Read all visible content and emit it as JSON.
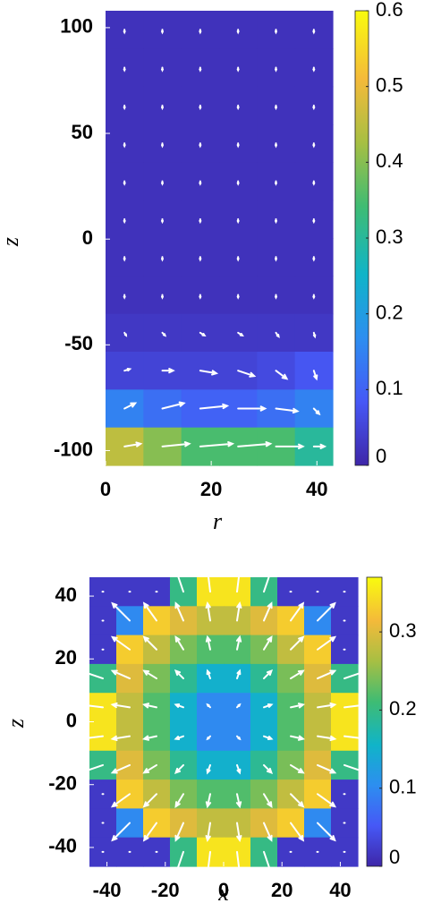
{
  "chart_data": [
    {
      "type": "heatmap",
      "xlabel": "r",
      "ylabel": "z",
      "colormap": "parula",
      "xlim": [
        0,
        43
      ],
      "ylim": [
        -107,
        108
      ],
      "xticks": [
        0,
        20,
        40
      ],
      "yticks": [
        -100,
        -50,
        0,
        50,
        100
      ],
      "clim": [
        0,
        0.6
      ],
      "cticks": [
        0,
        0.1,
        0.2,
        0.3,
        0.4,
        0.5,
        0.6
      ],
      "z": [
        [
          0.02,
          0.02,
          0.02,
          0.02,
          0.02,
          0.02
        ],
        [
          0.02,
          0.02,
          0.02,
          0.02,
          0.02,
          0.02
        ],
        [
          0.02,
          0.02,
          0.02,
          0.02,
          0.02,
          0.02
        ],
        [
          0.02,
          0.02,
          0.02,
          0.02,
          0.02,
          0.02
        ],
        [
          0.02,
          0.02,
          0.02,
          0.02,
          0.02,
          0.02
        ],
        [
          0.02,
          0.02,
          0.02,
          0.02,
          0.02,
          0.02
        ],
        [
          0.02,
          0.02,
          0.02,
          0.02,
          0.02,
          0.02
        ],
        [
          0.02,
          0.02,
          0.02,
          0.02,
          0.02,
          0.02
        ],
        [
          0.03,
          0.03,
          0.03,
          0.03,
          0.03,
          0.03
        ],
        [
          0.05,
          0.05,
          0.05,
          0.05,
          0.06,
          0.08
        ],
        [
          0.15,
          0.12,
          0.1,
          0.1,
          0.12,
          0.15
        ],
        [
          0.45,
          0.4,
          0.35,
          0.35,
          0.35,
          0.3
        ]
      ],
      "u": [
        [
          0,
          0,
          0,
          0,
          0,
          0
        ],
        [
          0,
          0,
          0,
          0,
          0,
          0
        ],
        [
          0,
          0,
          0,
          0,
          0,
          0
        ],
        [
          0,
          0,
          0,
          0,
          0,
          0
        ],
        [
          0,
          0,
          0,
          0,
          0,
          0
        ],
        [
          0,
          0,
          0,
          0,
          0,
          0
        ],
        [
          0,
          0,
          0,
          0,
          0,
          0
        ],
        [
          0,
          0,
          0,
          0,
          0,
          0
        ],
        [
          0.3,
          0.5,
          0.8,
          0.8,
          0.5,
          0.2
        ],
        [
          1,
          2,
          3,
          3,
          2,
          0.5
        ],
        [
          2,
          4,
          5,
          5,
          4,
          1
        ],
        [
          3,
          5,
          6,
          6,
          5,
          2
        ]
      ],
      "v": [
        [
          -0.5,
          -0.5,
          -0.5,
          -0.5,
          -0.5,
          -0.5
        ],
        [
          -0.5,
          -0.5,
          -0.5,
          -0.5,
          -0.5,
          -0.5
        ],
        [
          -0.5,
          -0.5,
          -0.5,
          -0.5,
          -0.5,
          -0.5
        ],
        [
          -0.5,
          -0.5,
          -0.5,
          -0.5,
          -0.5,
          -0.5
        ],
        [
          -0.5,
          -0.5,
          -0.5,
          -0.5,
          -0.5,
          -0.5
        ],
        [
          -0.5,
          -0.5,
          -0.5,
          -0.5,
          -0.5,
          -0.5
        ],
        [
          -0.5,
          -0.5,
          -0.5,
          -0.5,
          -0.5,
          -0.5
        ],
        [
          -0.5,
          -0.5,
          -0.5,
          -0.5,
          -0.5,
          -0.5
        ],
        [
          -0.5,
          -0.5,
          -0.5,
          -0.5,
          -0.7,
          -0.7
        ],
        [
          0.3,
          0,
          -0.5,
          -1,
          -1.5,
          -1.5
        ],
        [
          1,
          1,
          0.5,
          0,
          -0.5,
          -1
        ],
        [
          0.5,
          0.5,
          0.5,
          0.5,
          0,
          0
        ]
      ]
    },
    {
      "type": "heatmap",
      "xlabel": "x",
      "ylabel": "z",
      "colormap": "parula",
      "xlim": [
        -46,
        46
      ],
      "ylim": [
        -46,
        46
      ],
      "xticks": [
        -40,
        -20,
        0,
        20,
        40
      ],
      "yticks": [
        -40,
        -20,
        0,
        20,
        40
      ],
      "clim": [
        0,
        0.37
      ],
      "cticks": [
        0,
        0.1,
        0.2,
        0.3
      ],
      "z": [
        [
          0.02,
          0.02,
          0.02,
          0.2,
          0.35,
          0.35,
          0.2,
          0.02,
          0.02,
          0.02
        ],
        [
          0.02,
          0.1,
          0.33,
          0.3,
          0.28,
          0.28,
          0.3,
          0.33,
          0.1,
          0.02
        ],
        [
          0.02,
          0.33,
          0.28,
          0.24,
          0.22,
          0.22,
          0.24,
          0.28,
          0.33,
          0.02
        ],
        [
          0.2,
          0.3,
          0.24,
          0.19,
          0.15,
          0.15,
          0.19,
          0.24,
          0.3,
          0.2
        ],
        [
          0.35,
          0.28,
          0.22,
          0.15,
          0.1,
          0.1,
          0.15,
          0.22,
          0.28,
          0.35
        ],
        [
          0.35,
          0.28,
          0.22,
          0.15,
          0.1,
          0.1,
          0.15,
          0.22,
          0.28,
          0.35
        ],
        [
          0.2,
          0.3,
          0.24,
          0.19,
          0.15,
          0.15,
          0.19,
          0.24,
          0.3,
          0.2
        ],
        [
          0.02,
          0.33,
          0.28,
          0.24,
          0.22,
          0.22,
          0.24,
          0.28,
          0.33,
          0.02
        ],
        [
          0.02,
          0.1,
          0.33,
          0.3,
          0.28,
          0.28,
          0.3,
          0.33,
          0.1,
          0.02
        ],
        [
          0.02,
          0.02,
          0.02,
          0.2,
          0.35,
          0.35,
          0.2,
          0.02,
          0.02,
          0.02
        ]
      ],
      "u": [
        [
          0,
          0,
          0,
          -1.4,
          -0.5,
          0.5,
          1.4,
          0,
          0,
          0
        ],
        [
          0,
          -3.2,
          -2.3,
          -1.4,
          -0.5,
          0.5,
          1.4,
          2.3,
          3.2,
          0
        ],
        [
          0,
          -3.2,
          -2.3,
          -1.4,
          -0.5,
          0.5,
          1.4,
          2.3,
          3.2,
          0
        ],
        [
          -4.1,
          -3.2,
          -2.3,
          -1.4,
          -0.5,
          0.5,
          1.4,
          2.3,
          3.2,
          4.1
        ],
        [
          -4.1,
          -3.2,
          -2.3,
          -1.4,
          -0.5,
          0.5,
          1.4,
          2.3,
          3.2,
          4.1
        ],
        [
          -4.1,
          -3.2,
          -2.3,
          -1.4,
          -0.5,
          0.5,
          1.4,
          2.3,
          3.2,
          4.1
        ],
        [
          -4.1,
          -3.2,
          -2.3,
          -1.4,
          -0.5,
          0.5,
          1.4,
          2.3,
          3.2,
          4.1
        ],
        [
          0,
          -3.2,
          -2.3,
          -1.4,
          -0.5,
          0.5,
          1.4,
          2.3,
          3.2,
          0
        ],
        [
          0,
          -3.2,
          -2.3,
          -1.4,
          -0.5,
          0.5,
          1.4,
          2.3,
          3.2,
          0
        ],
        [
          0,
          0,
          0,
          -1.4,
          -0.5,
          0.5,
          1.4,
          0,
          0,
          0
        ]
      ],
      "v": [
        [
          0,
          0,
          0,
          4.1,
          4.1,
          4.1,
          4.1,
          0,
          0,
          0
        ],
        [
          0,
          3.2,
          3.2,
          3.2,
          3.2,
          3.2,
          3.2,
          3.2,
          3.2,
          0
        ],
        [
          0,
          2.3,
          2.3,
          2.3,
          2.3,
          2.3,
          2.3,
          2.3,
          2.3,
          0
        ],
        [
          1.4,
          1.4,
          1.4,
          1.4,
          1.4,
          1.4,
          1.4,
          1.4,
          1.4,
          1.4
        ],
        [
          0.5,
          0.5,
          0.5,
          0.5,
          0.5,
          0.5,
          0.5,
          0.5,
          0.5,
          0.5
        ],
        [
          -0.5,
          -0.5,
          -0.5,
          -0.5,
          -0.5,
          -0.5,
          -0.5,
          -0.5,
          -0.5,
          -0.5
        ],
        [
          -1.4,
          -1.4,
          -1.4,
          -1.4,
          -1.4,
          -1.4,
          -1.4,
          -1.4,
          -1.4,
          -1.4
        ],
        [
          0,
          -2.3,
          -2.3,
          -2.3,
          -2.3,
          -2.3,
          -2.3,
          -2.3,
          -2.3,
          0
        ],
        [
          0,
          -3.2,
          -3.2,
          -3.2,
          -3.2,
          -3.2,
          -3.2,
          -3.2,
          -3.2,
          0
        ],
        [
          0,
          0,
          0,
          -4.1,
          -4.1,
          -4.1,
          -4.1,
          0,
          0,
          0
        ]
      ]
    }
  ]
}
